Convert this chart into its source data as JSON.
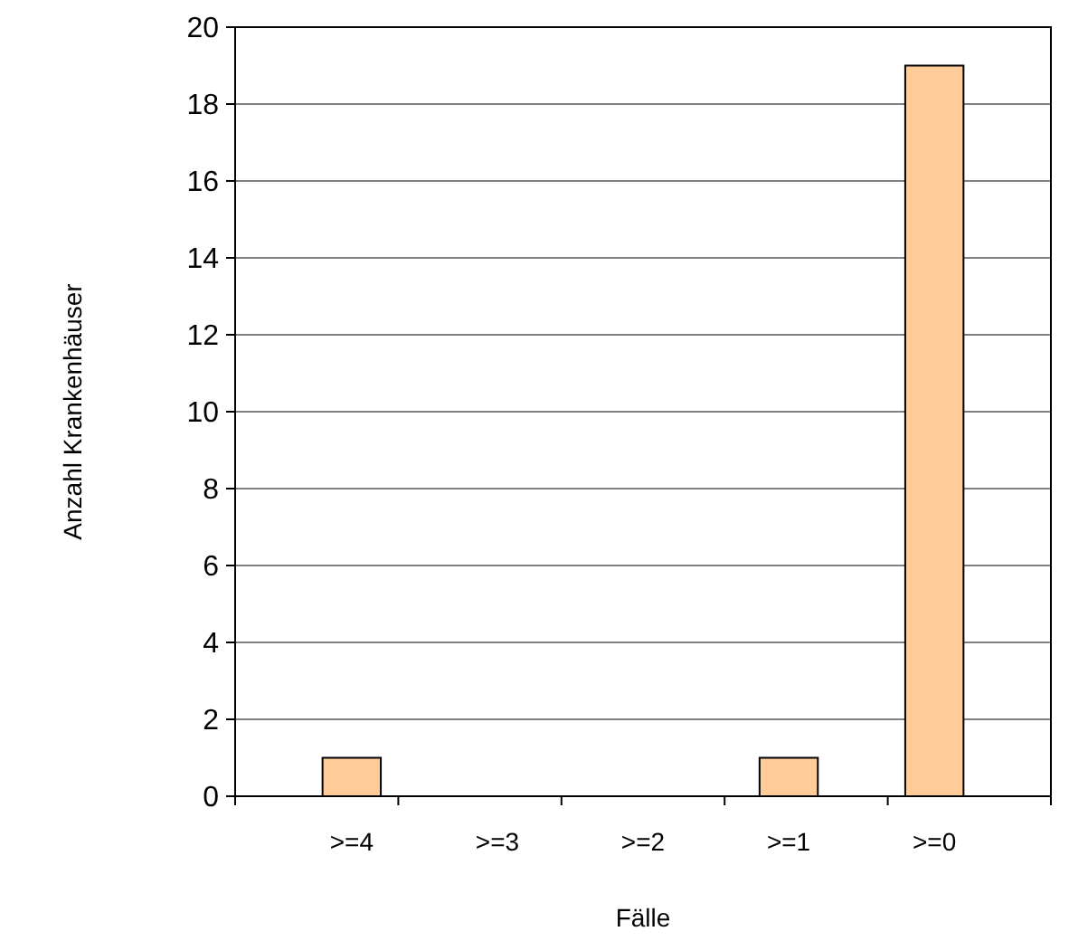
{
  "chart_data": {
    "type": "bar",
    "xlabel": "Fälle",
    "ylabel": "Anzahl Krankenhäuser",
    "categories": [
      ">=4",
      ">=3",
      ">=2",
      ">=1",
      ">=0"
    ],
    "values": [
      1,
      0,
      0,
      1,
      19
    ],
    "color": "#ffcc99",
    "ylim": [
      0,
      20
    ],
    "yticks": [
      0,
      2,
      4,
      6,
      8,
      10,
      12,
      14,
      16,
      18,
      20
    ],
    "grid": "y"
  }
}
